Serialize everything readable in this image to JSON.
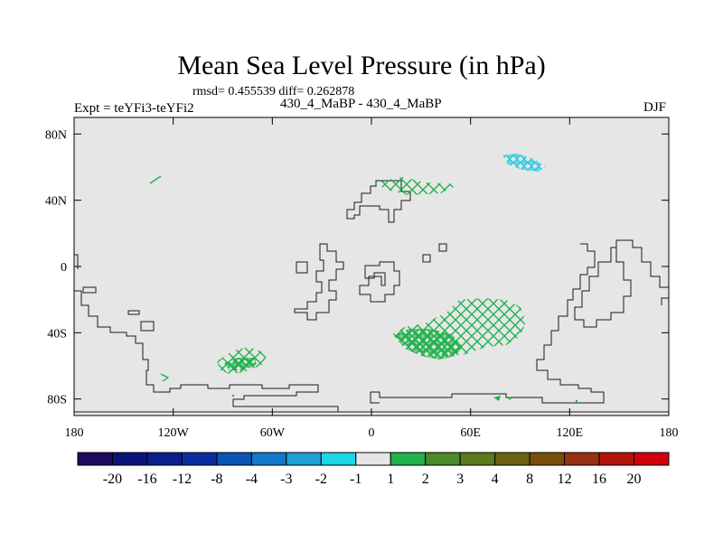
{
  "title": "Mean Sea Level Pressure (in hPa)",
  "stats_text": "rmsd= 0.455539 diff= 0.262878",
  "experiment_text": "Expt = teYFi3-teYFi2",
  "cases_text": "430_4_MaBP - 430_4_MaBP",
  "season_text": "DJF",
  "map": {
    "lon_range": [
      -180,
      180
    ],
    "lat_range": [
      -90,
      90
    ],
    "x_ticks": [
      {
        "lon": -180,
        "label": "180"
      },
      {
        "lon": -120,
        "label": "120W"
      },
      {
        "lon": -60,
        "label": "60W"
      },
      {
        "lon": 0,
        "label": "0"
      },
      {
        "lon": 60,
        "label": "60E"
      },
      {
        "lon": 120,
        "label": "120E"
      },
      {
        "lon": 180,
        "label": "180"
      }
    ],
    "y_ticks": [
      {
        "lat": 80,
        "label": "80N"
      },
      {
        "lat": 40,
        "label": "40N"
      },
      {
        "lat": 0,
        "label": "0"
      },
      {
        "lat": -40,
        "label": "40S"
      },
      {
        "lat": -80,
        "label": "80S"
      }
    ],
    "colors": {
      "background": "#e6e6e6",
      "positive_hatch": "#22b24c",
      "negative_hatch": "#1ec8e0",
      "coastline": "#1a1a1a"
    }
  },
  "colorbar": {
    "colors": [
      "#1e0a5a",
      "#0a147a",
      "#0a1e8c",
      "#0a2ea0",
      "#0a55b4",
      "#1478c8",
      "#1ea0d7",
      "#19d7e6",
      "#e6e6e6",
      "#22b24c",
      "#4a8a2a",
      "#5a7a1e",
      "#6a6414",
      "#7a4e0a",
      "#963214",
      "#b4140a",
      "#d2000a"
    ],
    "labels": [
      "-20",
      "-16",
      "-12",
      "-8",
      "-4",
      "-3",
      "-2",
      "-1",
      "1",
      "2",
      "3",
      "4",
      "8",
      "12",
      "16",
      "20"
    ]
  }
}
